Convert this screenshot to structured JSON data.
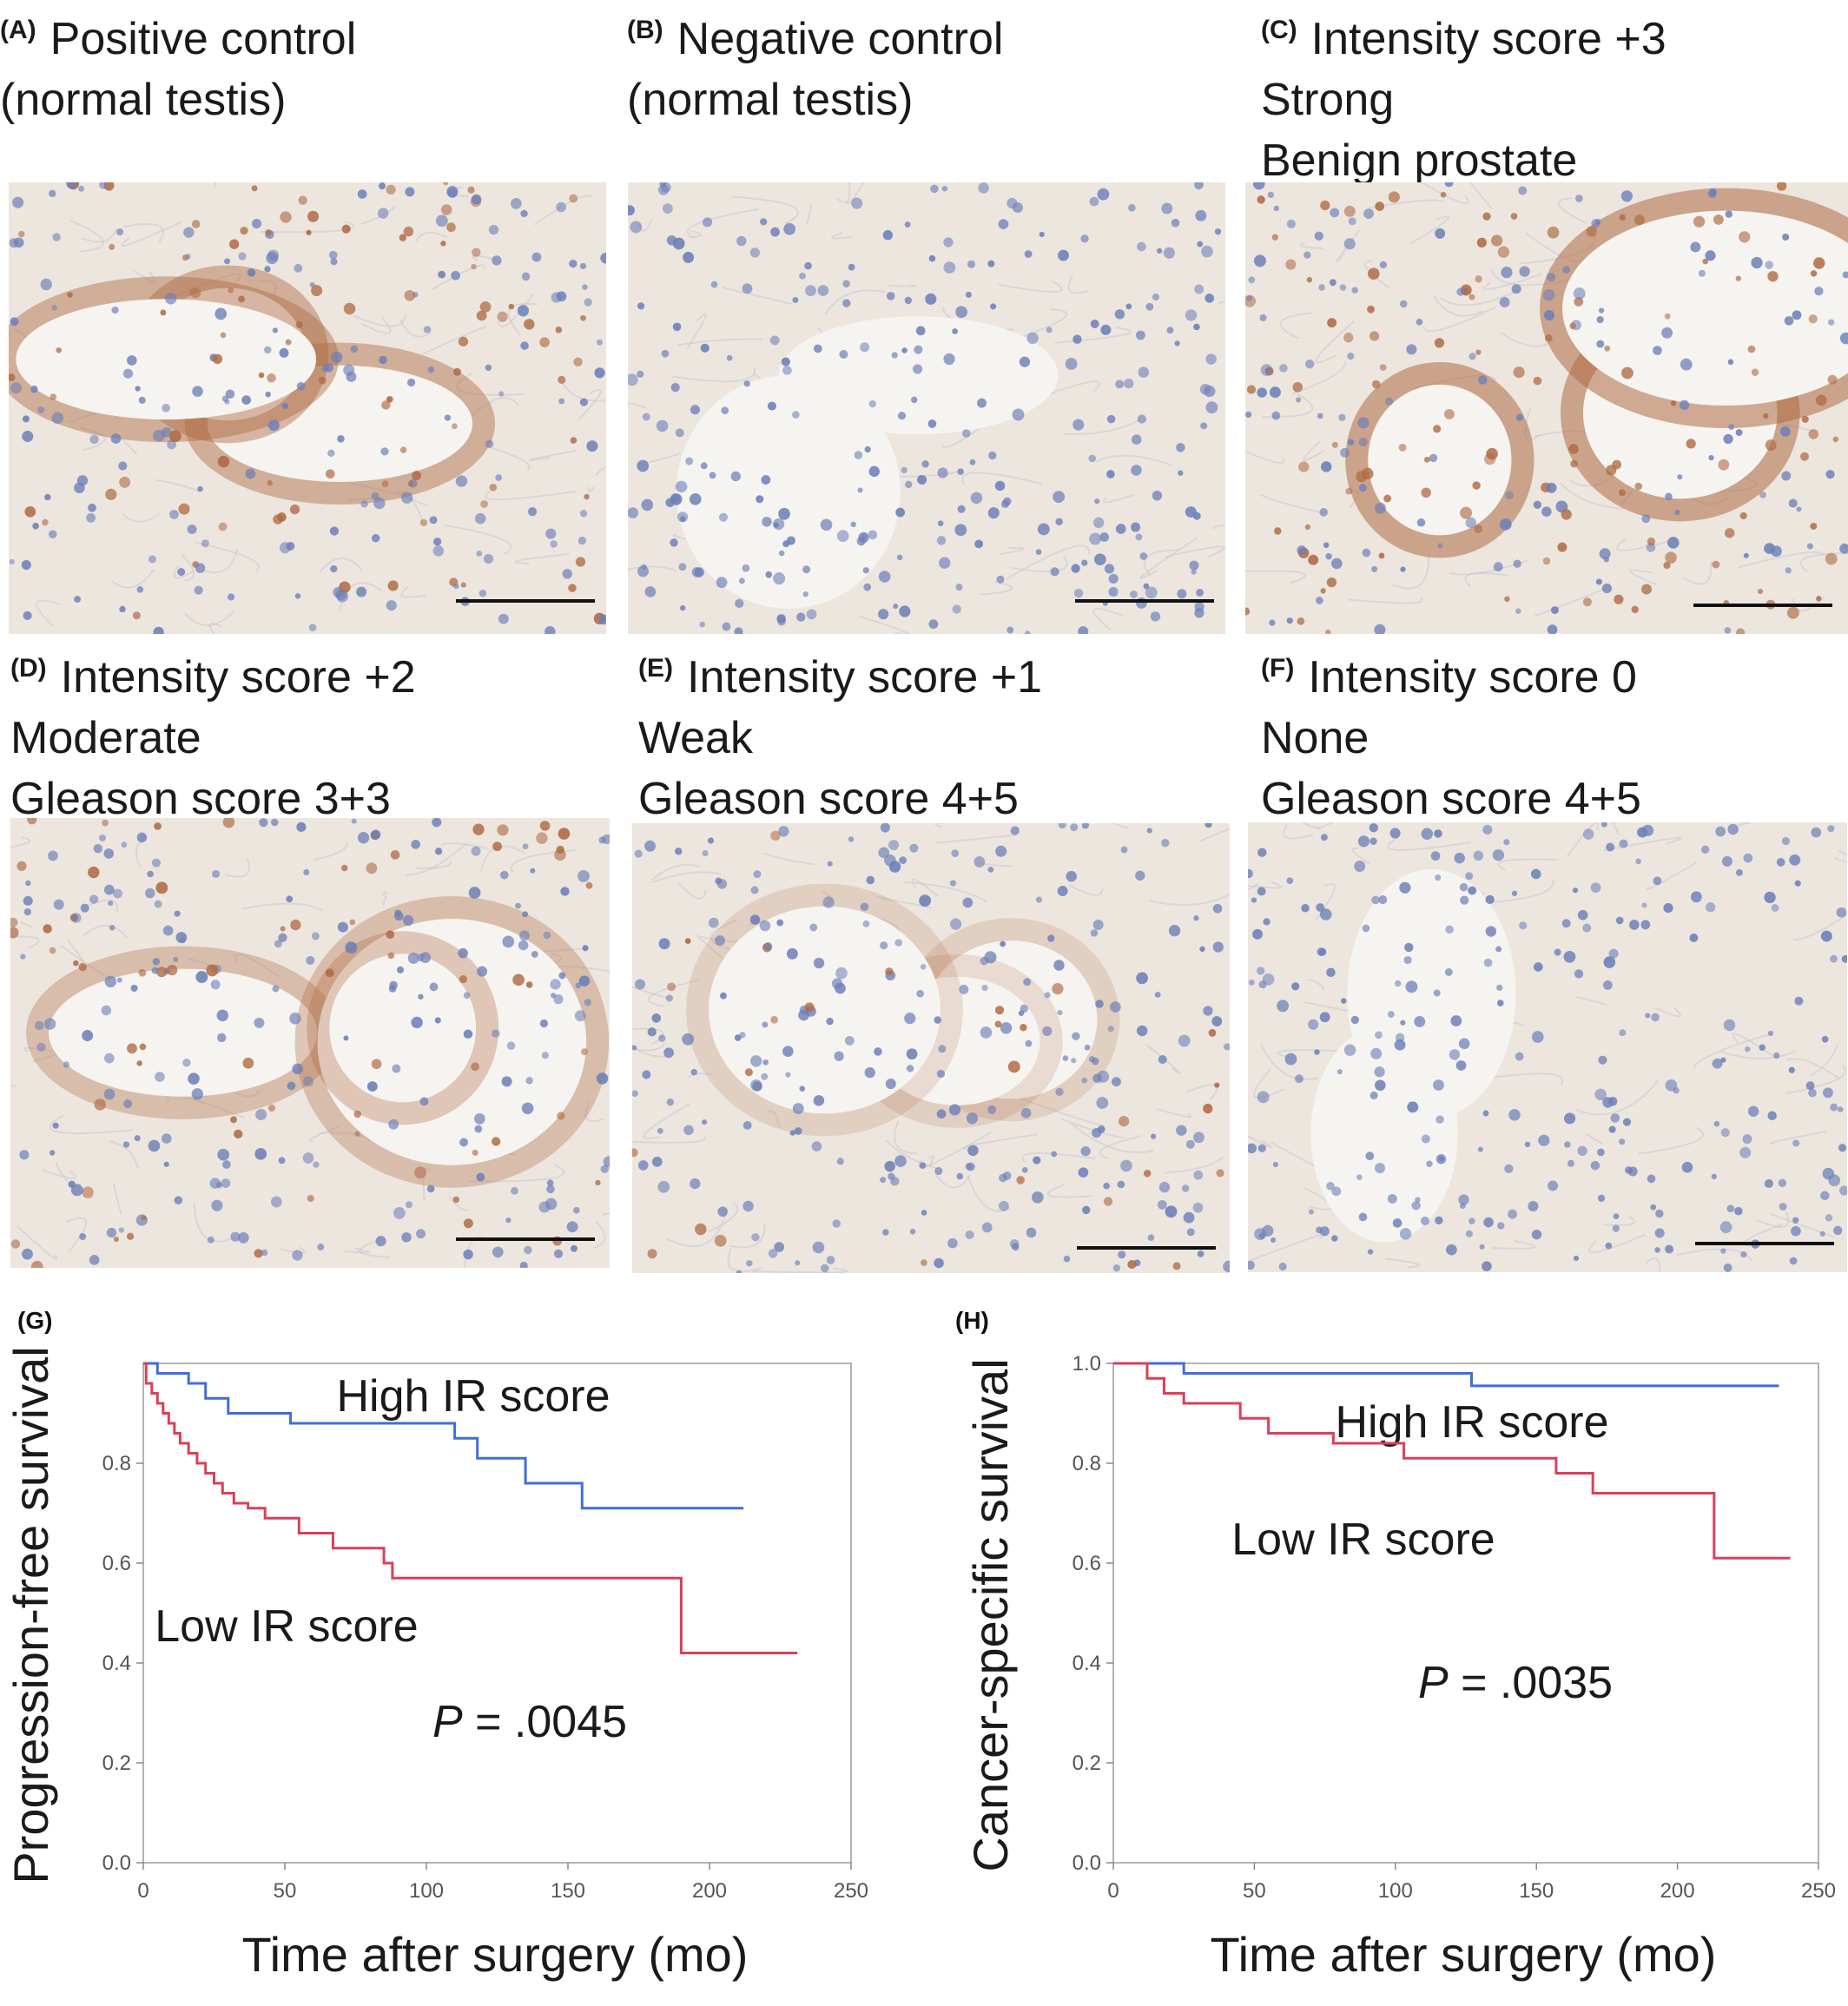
{
  "panels": [
    {
      "tag": "(A)",
      "lines": [
        "Positive control",
        "(normal testis)"
      ],
      "stain": "brown"
    },
    {
      "tag": "(B)",
      "lines": [
        "Negative control",
        "(normal testis)"
      ],
      "stain": "blue"
    },
    {
      "tag": "(C)",
      "lines": [
        "Intensity score +3",
        "Strong",
        "Benign prostate"
      ],
      "stain": "brown-strong"
    },
    {
      "tag": "(D)",
      "lines": [
        "Intensity score +2",
        "Moderate",
        "Gleason score 3+3"
      ],
      "stain": "brown-moderate"
    },
    {
      "tag": "(E)",
      "lines": [
        "Intensity score +1",
        "Weak",
        "Gleason score 4+5"
      ],
      "stain": "brown-weak"
    },
    {
      "tag": "(F)",
      "lines": [
        "Intensity score 0",
        "None",
        "Gleason score 4+5"
      ],
      "stain": "blue"
    }
  ],
  "colors": {
    "high": "#3f6fd6",
    "low": "#d9405a",
    "brown": "#b06a43",
    "hematoxylin": "#6c7fb8",
    "background": "#ece6df"
  },
  "chart_data": [
    {
      "type": "line",
      "panel_tag": "(G)",
      "xlabel": "Time after surgery (mo)",
      "ylabel": "Progression-free survival",
      "xlim": [
        0,
        250
      ],
      "ylim": [
        0,
        1.0
      ],
      "xticks": [
        "0",
        "50",
        "100",
        "150",
        "200",
        "250"
      ],
      "yticks": [
        "0.0",
        "0.2",
        "0.4",
        "0.6",
        "0.8"
      ],
      "ytick_values": [
        0,
        0.2,
        0.4,
        0.6,
        0.8
      ],
      "grid": false,
      "annotation": {
        "italic": "P",
        "text": " = .0045"
      },
      "series": [
        {
          "name": "High IR score",
          "color": "#3f6fd6",
          "x": [
            0,
            5,
            16,
            22,
            30,
            52,
            110,
            118,
            135,
            155,
            212
          ],
          "y": [
            1.0,
            0.98,
            0.96,
            0.93,
            0.9,
            0.88,
            0.85,
            0.81,
            0.76,
            0.71,
            0.71
          ]
        },
        {
          "name": "Low IR score",
          "color": "#d9405a",
          "x": [
            0,
            1,
            3,
            5,
            7,
            9,
            11,
            13,
            16,
            19,
            22,
            25,
            28,
            32,
            37,
            43,
            55,
            67,
            85,
            88,
            190,
            231
          ],
          "y": [
            1.0,
            0.96,
            0.94,
            0.92,
            0.9,
            0.88,
            0.86,
            0.84,
            0.82,
            0.8,
            0.78,
            0.76,
            0.74,
            0.72,
            0.71,
            0.69,
            0.66,
            0.63,
            0.6,
            0.57,
            0.42,
            0.42
          ]
        }
      ]
    },
    {
      "type": "line",
      "panel_tag": "(H)",
      "xlabel": "Time after surgery (mo)",
      "ylabel": "Cancer-specific survival",
      "xlim": [
        0,
        250
      ],
      "ylim": [
        0,
        1.0
      ],
      "xticks": [
        "0",
        "50",
        "100",
        "150",
        "200",
        "250"
      ],
      "yticks": [
        "0.0",
        "0.2",
        "0.4",
        "0.6",
        "0.8",
        "1.0"
      ],
      "ytick_values": [
        0,
        0.2,
        0.4,
        0.6,
        0.8,
        1.0
      ],
      "grid": false,
      "annotation": {
        "italic": "P",
        "text": " = .0035"
      },
      "series": [
        {
          "name": "High IR score",
          "color": "#3f6fd6",
          "x": [
            0,
            25,
            127,
            236
          ],
          "y": [
            1.0,
            0.98,
            0.955,
            0.955
          ]
        },
        {
          "name": "Low IR score",
          "color": "#d9405a",
          "x": [
            0,
            12,
            18,
            25,
            45,
            55,
            78,
            103,
            157,
            170,
            213,
            240
          ],
          "y": [
            1.0,
            0.97,
            0.94,
            0.92,
            0.89,
            0.86,
            0.84,
            0.81,
            0.78,
            0.74,
            0.61,
            0.61
          ]
        }
      ]
    }
  ]
}
